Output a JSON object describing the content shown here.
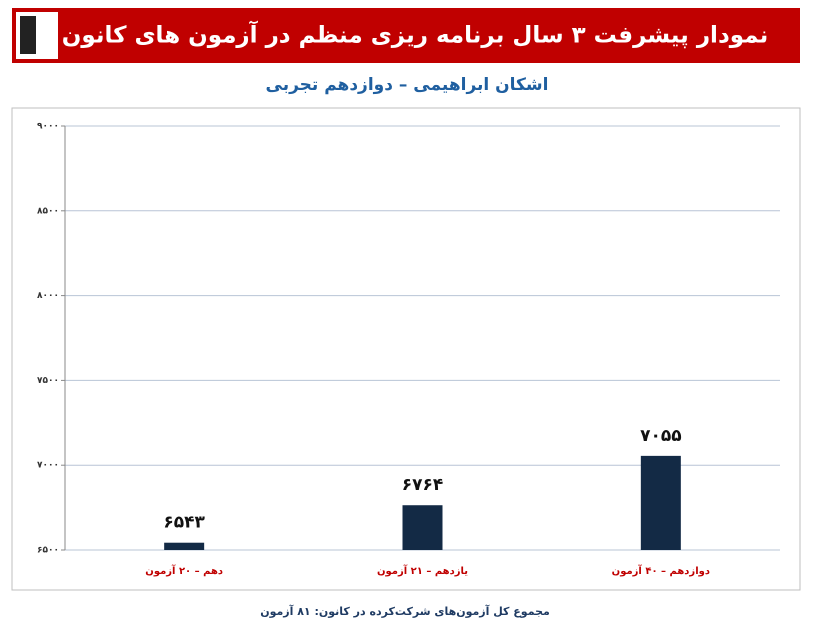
{
  "chart_data": {
    "type": "bar",
    "title": "نمودار پیشرفت ۳ سال برنامه ریزی منظم در آزمون های کانون",
    "subtitle": "اشکان ابراهیمی – دوازدهم تجربی",
    "categories": [
      "دهم – ۲۰ آزمون",
      "یازدهم – ۲۱ آزمون",
      "دوازدهم – ۴۰ آزمون"
    ],
    "values": [
      6543,
      6764,
      7055
    ],
    "value_labels": [
      "۶۵۴۳",
      "۶۷۶۴",
      "۷۰۵۵"
    ],
    "color": "#132a45",
    "ylim": [
      6500,
      9000
    ],
    "yticks": [
      {
        "value": 6500,
        "label": "۶۵۰۰"
      },
      {
        "value": 7000,
        "label": "۷۰۰۰"
      },
      {
        "value": 7500,
        "label": "۷۵۰۰"
      },
      {
        "value": 8000,
        "label": "۸۰۰۰"
      },
      {
        "value": 8500,
        "label": "۸۵۰۰"
      },
      {
        "value": 9000,
        "label": "۹۰۰۰"
      }
    ],
    "grid": true,
    "footnote": "مجموع کل آزمون‌های شرکت‌کرده در کانون: ۸۱ آزمون"
  }
}
